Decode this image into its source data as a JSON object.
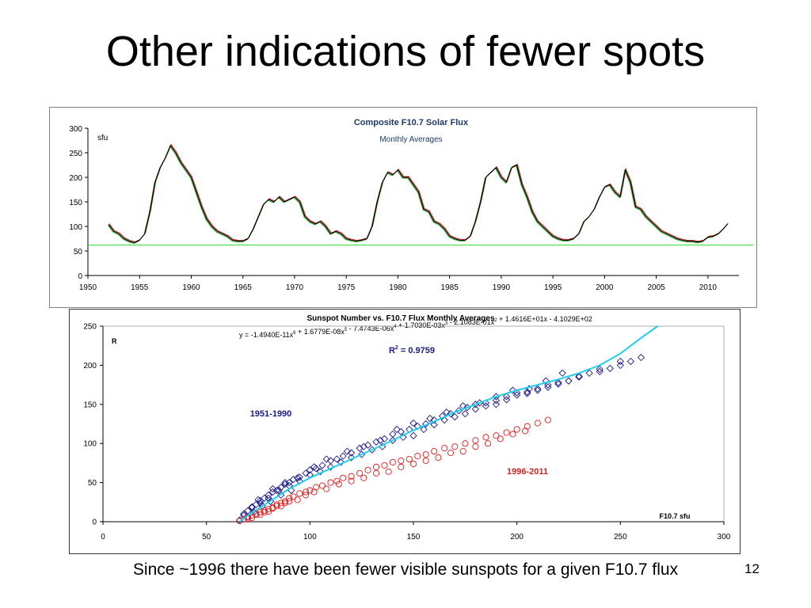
{
  "slide": {
    "title": "Other indications of fewer spots",
    "caption": "Since ~1996 there have been fewer visible sunspots for a given F10.7 flux",
    "page_number": "12"
  },
  "chart_data": [
    {
      "type": "line",
      "title": "Composite F10.7 Solar Flux",
      "subtitle": "Monthly Averages",
      "ylabel": "sfu",
      "xlabel": "",
      "xlim": [
        1950,
        2013
      ],
      "ylim": [
        0,
        300
      ],
      "xticks": [
        1950,
        1955,
        1960,
        1965,
        1970,
        1975,
        1980,
        1985,
        1990,
        1995,
        2000,
        2005,
        2010
      ],
      "yticks": [
        0,
        50,
        100,
        150,
        200,
        250,
        300
      ],
      "grid": false,
      "reference_line": {
        "y": 62,
        "color": "#33dd33"
      },
      "series": [
        {
          "color": "#000000",
          "x": [
            1952.0,
            1952.5,
            1953.0,
            1953.5,
            1954.0,
            1954.5,
            1955.0,
            1955.5,
            1956.0,
            1956.5,
            1957.0,
            1957.5,
            1958.0,
            1958.5,
            1959.0,
            1959.5,
            1960.0,
            1960.5,
            1961.0,
            1961.5,
            1962.0,
            1962.5,
            1963.0,
            1963.5,
            1964.0,
            1964.5,
            1965.0,
            1965.5,
            1966.0,
            1966.5,
            1967.0,
            1967.5,
            1968.0,
            1968.5,
            1969.0,
            1969.5,
            1970.0,
            1970.5,
            1971.0,
            1971.5,
            1972.0,
            1972.5,
            1973.0,
            1973.5,
            1974.0,
            1974.5,
            1975.0,
            1975.5,
            1976.0,
            1976.5,
            1977.0,
            1977.5,
            1978.0,
            1978.5,
            1979.0,
            1979.5,
            1980.0,
            1980.5,
            1981.0,
            1981.5,
            1982.0,
            1982.5,
            1983.0,
            1983.5,
            1984.0,
            1984.5,
            1985.0,
            1985.5,
            1986.0,
            1986.5,
            1987.0,
            1987.5,
            1988.0,
            1988.5,
            1989.0,
            1989.5,
            1990.0,
            1990.5,
            1991.0,
            1991.5,
            1992.0,
            1992.5,
            1993.0,
            1993.5,
            1994.0,
            1994.5,
            1995.0,
            1995.5,
            1996.0,
            1996.5,
            1997.0,
            1997.5,
            1998.0,
            1998.5,
            1999.0,
            1999.5,
            2000.0,
            2000.5,
            2001.0,
            2001.5,
            2002.0,
            2002.5,
            2003.0,
            2003.5,
            2004.0,
            2004.5,
            2005.0,
            2005.5,
            2006.0,
            2006.5,
            2007.0,
            2007.5,
            2008.0,
            2008.5,
            2009.0,
            2009.5,
            2010.0,
            2010.5,
            2011.0,
            2011.5,
            2011.9
          ],
          "y": [
            104,
            90,
            85,
            75,
            70,
            67,
            72,
            85,
            130,
            190,
            220,
            240,
            265,
            250,
            230,
            215,
            200,
            170,
            140,
            115,
            100,
            90,
            85,
            80,
            72,
            70,
            70,
            75,
            95,
            120,
            145,
            155,
            150,
            160,
            150,
            155,
            160,
            150,
            120,
            110,
            105,
            110,
            100,
            85,
            90,
            85,
            75,
            72,
            70,
            72,
            75,
            100,
            150,
            190,
            210,
            205,
            215,
            200,
            200,
            185,
            170,
            135,
            130,
            110,
            105,
            95,
            80,
            75,
            72,
            72,
            80,
            110,
            150,
            200,
            210,
            220,
            200,
            190,
            220,
            225,
            185,
            160,
            130,
            110,
            100,
            90,
            80,
            75,
            72,
            72,
            75,
            85,
            110,
            120,
            135,
            160,
            180,
            185,
            170,
            160,
            215,
            190,
            140,
            135,
            120,
            110,
            100,
            90,
            85,
            80,
            75,
            72,
            70,
            70,
            68,
            70,
            78,
            80,
            85,
            95,
            105
          ]
        }
      ]
    },
    {
      "type": "scatter",
      "title": "Sunspot Number vs. F10.7 Flux Monthly Averages",
      "ylabel": "R",
      "xlabel": "F10.7 sfu",
      "xlim": [
        0,
        300
      ],
      "ylim": [
        0,
        250
      ],
      "xticks": [
        0,
        50,
        100,
        150,
        200,
        250,
        300
      ],
      "yticks": [
        0,
        50,
        100,
        150,
        200,
        250
      ],
      "equation": "y = -1.4940E-11x6 + 1.6779E-08x5 - 7.4743E-06x4 + 1.7030E-03x3 - 2.1083E-01x2 + 1.4616E+01x - 4.1029E+02",
      "r_squared": "R2 = 0.9759",
      "series": [
        {
          "name": "1951-1990",
          "marker": "diamond",
          "color": "#1a1a8c",
          "x": [
            66,
            68,
            70,
            72,
            74,
            76,
            78,
            80,
            82,
            84,
            86,
            88,
            90,
            92,
            95,
            98,
            100,
            103,
            106,
            110,
            113,
            116,
            120,
            124,
            128,
            132,
            136,
            140,
            144,
            148,
            152,
            156,
            160,
            164,
            168,
            172,
            176,
            180,
            185,
            190,
            195,
            200,
            205,
            210,
            215,
            220,
            225,
            230,
            235,
            240,
            245,
            250,
            255,
            260,
            68,
            72,
            76,
            80,
            85,
            90,
            95,
            100,
            105,
            110,
            115,
            120,
            125,
            130,
            135,
            140,
            145,
            150,
            155,
            160,
            165,
            170,
            175,
            180,
            185,
            190,
            195,
            200,
            205,
            210,
            215,
            220,
            225,
            230,
            240,
            250,
            75,
            82,
            88,
            94,
            102,
            108,
            118,
            126,
            134,
            142,
            150,
            158,
            166,
            174,
            182,
            190,
            198,
            206,
            214,
            222,
            70,
            73,
            77,
            81,
            86,
            91
          ],
          "y": [
            2,
            8,
            14,
            19,
            22,
            27,
            30,
            34,
            38,
            40,
            44,
            48,
            50,
            54,
            57,
            62,
            66,
            68,
            72,
            78,
            80,
            84,
            88,
            94,
            98,
            102,
            106,
            112,
            115,
            118,
            122,
            125,
            130,
            135,
            138,
            142,
            146,
            150,
            152,
            155,
            160,
            165,
            166,
            170,
            175,
            178,
            180,
            185,
            190,
            192,
            196,
            200,
            205,
            210,
            10,
            18,
            24,
            30,
            40,
            46,
            52,
            60,
            64,
            70,
            76,
            82,
            86,
            92,
            96,
            104,
            108,
            110,
            118,
            124,
            130,
            134,
            138,
            144,
            148,
            150,
            156,
            162,
            164,
            168,
            172,
            176,
            180,
            186,
            195,
            205,
            28,
            42,
            50,
            56,
            70,
            80,
            90,
            96,
            104,
            118,
            126,
            132,
            140,
            148,
            152,
            160,
            168,
            170,
            180,
            190,
            6,
            12,
            20,
            26,
            34,
            40
          ]
        },
        {
          "name": "1996-2011",
          "marker": "circle",
          "color": "#e01b1b",
          "x": [
            66,
            68,
            70,
            72,
            74,
            76,
            78,
            80,
            82,
            84,
            86,
            88,
            90,
            92,
            95,
            98,
            100,
            103,
            106,
            110,
            113,
            116,
            120,
            124,
            128,
            132,
            136,
            140,
            144,
            148,
            152,
            156,
            160,
            165,
            170,
            175,
            180,
            185,
            190,
            195,
            200,
            205,
            210,
            215,
            70,
            74,
            78,
            82,
            86,
            90,
            94,
            98,
            102,
            108,
            114,
            120,
            126,
            132,
            138,
            144,
            150,
            156,
            162,
            168,
            174,
            180,
            186,
            192,
            198,
            204,
            72,
            76,
            80,
            84,
            88
          ],
          "y": [
            1,
            3,
            6,
            8,
            10,
            12,
            14,
            16,
            18,
            22,
            24,
            26,
            30,
            32,
            36,
            38,
            40,
            44,
            46,
            50,
            52,
            56,
            58,
            62,
            66,
            70,
            72,
            76,
            78,
            80,
            84,
            86,
            90,
            94,
            96,
            100,
            104,
            108,
            110,
            114,
            118,
            122,
            126,
            130,
            4,
            9,
            12,
            17,
            20,
            26,
            28,
            34,
            38,
            42,
            48,
            52,
            56,
            62,
            64,
            70,
            74,
            78,
            82,
            88,
            90,
            96,
            100,
            106,
            112,
            116,
            5,
            9,
            13,
            20,
            24
          ]
        },
        {
          "name": "fit",
          "type": "line",
          "color": "#22ccee",
          "x": [
            66,
            70,
            80,
            90,
            100,
            110,
            120,
            130,
            140,
            150,
            160,
            170,
            180,
            190,
            200,
            210,
            220,
            230,
            240,
            250,
            260,
            268
          ],
          "y": [
            0,
            8,
            25,
            42,
            56,
            68,
            80,
            92,
            104,
            117,
            128,
            140,
            150,
            160,
            168,
            175,
            182,
            190,
            200,
            215,
            235,
            250
          ]
        }
      ],
      "annotations": [
        {
          "text": "1951-1990",
          "color": "#1a1a8c"
        },
        {
          "text": "1996-2011",
          "color": "#e01b1b"
        }
      ]
    }
  ]
}
